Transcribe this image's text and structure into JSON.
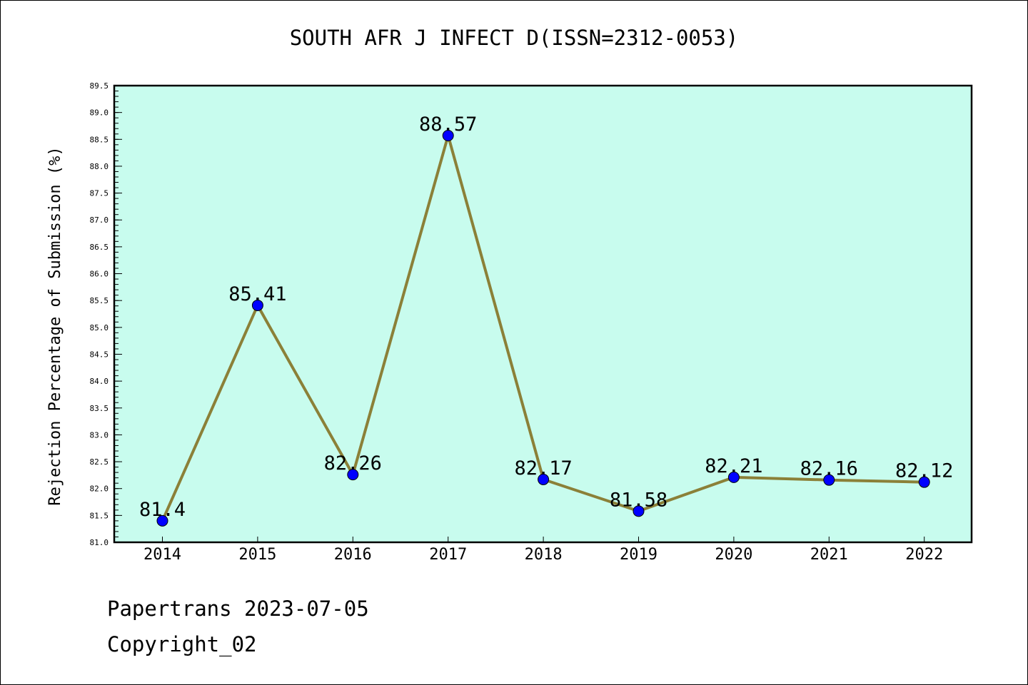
{
  "chart_data": {
    "type": "line",
    "title": "SOUTH AFR J INFECT D(ISSN=2312-0053)",
    "xlabel": "",
    "ylabel": "Rejection Percentage of Submission (%)",
    "categories": [
      "2014",
      "2015",
      "2016",
      "2017",
      "2018",
      "2019",
      "2020",
      "2021",
      "2022"
    ],
    "series": [
      {
        "values": [
          81.4,
          85.41,
          82.26,
          88.57,
          82.17,
          81.58,
          82.21,
          82.16,
          82.12
        ]
      }
    ],
    "data_labels": [
      "81.4",
      "85.41",
      "82.26",
      "88.57",
      "82.17",
      "81.58",
      "82.21",
      "82.16",
      "82.12"
    ],
    "ylim": [
      81.0,
      89.5
    ],
    "yticks": [
      "81.0",
      "81.5",
      "82.0",
      "82.5",
      "83.0",
      "83.5",
      "84.0",
      "84.5",
      "85.0",
      "85.5",
      "86.0",
      "86.5",
      "87.0",
      "87.5",
      "88.0",
      "88.5",
      "89.0",
      "89.5"
    ],
    "grid": false,
    "colors": {
      "plot_background": "#c8fcee",
      "line": "#8b8038",
      "marker": "#0000ff"
    }
  },
  "footer": {
    "source": "Papertrans 2023-07-05",
    "copyright": "Copyright_02"
  }
}
